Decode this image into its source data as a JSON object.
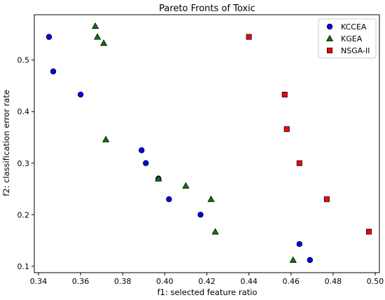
{
  "chart_data": {
    "type": "scatter",
    "title": "Pareto Fronts of Toxic",
    "xlabel": "f1: selected feature ratio",
    "ylabel": "f2: classification error rate",
    "xlim": [
      0.338,
      0.502
    ],
    "ylim": [
      0.0875,
      0.588
    ],
    "xticks": [
      "0.34",
      "0.36",
      "0.38",
      "0.40",
      "0.42",
      "0.44",
      "0.46",
      "0.48",
      "0.50"
    ],
    "yticks": [
      "0.1",
      "0.2",
      "0.3",
      "0.4",
      "0.5"
    ],
    "grid": false,
    "legend_position": "top-right",
    "series": [
      {
        "name": "KCCEA",
        "marker": "circle",
        "color": "#0000ff",
        "points": [
          [
            0.345,
            0.545
          ],
          [
            0.347,
            0.478
          ],
          [
            0.36,
            0.433
          ],
          [
            0.389,
            0.325
          ],
          [
            0.391,
            0.3
          ],
          [
            0.397,
            0.27
          ],
          [
            0.402,
            0.23
          ],
          [
            0.417,
            0.2
          ],
          [
            0.464,
            0.143
          ],
          [
            0.469,
            0.112
          ]
        ]
      },
      {
        "name": "KGEA",
        "marker": "triangle",
        "color": "#008000",
        "points": [
          [
            0.367,
            0.566
          ],
          [
            0.368,
            0.545
          ],
          [
            0.371,
            0.533
          ],
          [
            0.372,
            0.346
          ],
          [
            0.397,
            0.27
          ],
          [
            0.41,
            0.256
          ],
          [
            0.422,
            0.23
          ],
          [
            0.424,
            0.167
          ],
          [
            0.461,
            0.112
          ]
        ]
      },
      {
        "name": "NSGA-II",
        "marker": "square",
        "color": "#ff0000",
        "points": [
          [
            0.44,
            0.545
          ],
          [
            0.457,
            0.433
          ],
          [
            0.458,
            0.366
          ],
          [
            0.464,
            0.3
          ],
          [
            0.477,
            0.23
          ],
          [
            0.497,
            0.167
          ]
        ]
      }
    ]
  }
}
